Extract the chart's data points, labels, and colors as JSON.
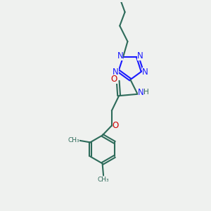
{
  "bg_color": "#eff1ef",
  "bond_color": "#2d6b5a",
  "n_color": "#1a1aff",
  "o_color": "#cc0000",
  "h_color": "#2d6b5a",
  "line_width": 1.5,
  "figsize": [
    3.0,
    3.0
  ],
  "dpi": 100,
  "xlim": [
    0,
    10
  ],
  "ylim": [
    0,
    10
  ]
}
